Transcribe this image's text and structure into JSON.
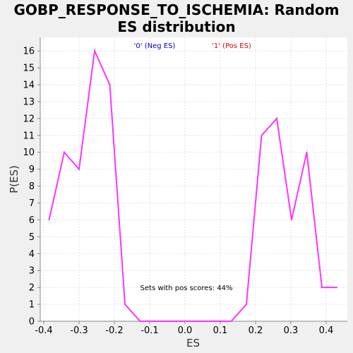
{
  "chart_data": {
    "type": "line",
    "title_lines": [
      "GOBP_RESPONSE_TO_ISCHEMIA: Random",
      "ES distribution"
    ],
    "xlabel": "ES",
    "ylabel": "P(ES)",
    "xlim": [
      -0.41,
      0.46
    ],
    "ylim": [
      0,
      16.8
    ],
    "x_ticks": [
      -0.4,
      -0.3,
      -0.2,
      -0.1,
      0.0,
      0.1,
      0.2,
      0.3,
      0.4
    ],
    "x_tick_labels": [
      "-0.4",
      "-0.3",
      "-0.2",
      "-0.1",
      "0.0",
      "0.1",
      "0.2",
      "0.3",
      "0.4"
    ],
    "y_ticks": [
      0,
      1,
      2,
      3,
      4,
      5,
      6,
      7,
      8,
      9,
      10,
      11,
      12,
      13,
      14,
      15,
      16
    ],
    "y_tick_labels": [
      "0",
      "1",
      "2",
      "3",
      "4",
      "5",
      "6",
      "7",
      "8",
      "9",
      "10",
      "11",
      "12",
      "13",
      "14",
      "15",
      "16"
    ],
    "grid": true,
    "legend": [
      {
        "label": "'0' (Neg ES)",
        "color": "#0000cc"
      },
      {
        "label": "'1' (Pos ES)",
        "color": "#dd0000"
      }
    ],
    "annotation": "Sets with pos scores: 44%",
    "series": [
      {
        "color": "#ff33ff",
        "x": [
          -0.385,
          -0.342,
          -0.3,
          -0.256,
          -0.213,
          -0.17,
          -0.127,
          -0.084,
          -0.041,
          0.002,
          0.045,
          0.088,
          0.131,
          0.174,
          0.217,
          0.26,
          0.302,
          0.345,
          0.388,
          0.43
        ],
        "y": [
          6,
          10,
          9,
          16,
          14,
          1,
          0,
          0,
          0,
          0,
          0,
          0,
          0,
          1,
          11,
          12,
          6,
          10,
          2,
          2
        ]
      }
    ]
  }
}
